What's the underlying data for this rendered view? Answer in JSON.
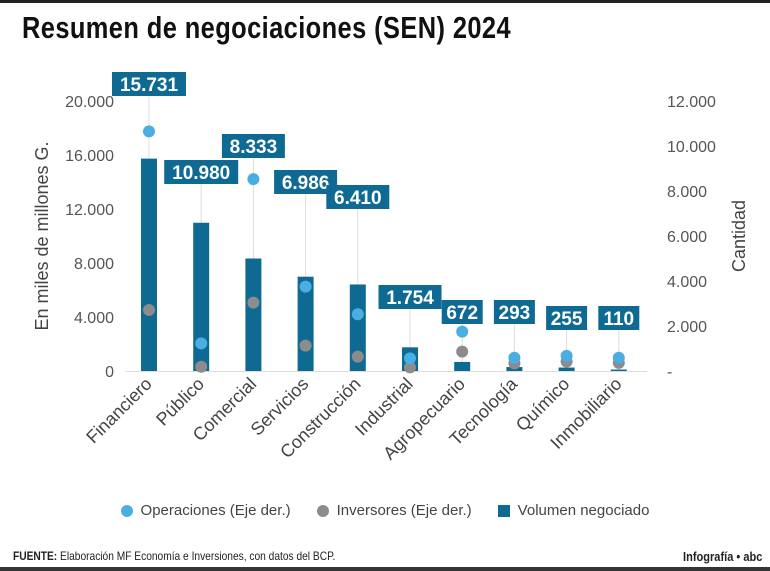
{
  "chart_data": {
    "type": "bar",
    "title": "Resumen de negociaciones (SEN) 2024",
    "categories": [
      "Financiero",
      "Público",
      "Comercial",
      "Servicios",
      "Construcción",
      "Industrial",
      "Agropecuario",
      "Tecnología",
      "Químico",
      "Inmobiliario"
    ],
    "series": [
      {
        "name": "Volumen negociado",
        "axis": "left",
        "type": "bar",
        "color": "#0e6a93",
        "values": [
          15731,
          10980,
          8333,
          6986,
          6410,
          1754,
          672,
          293,
          255,
          110
        ],
        "labels": [
          "15.731",
          "10.980",
          "8.333",
          "6.986",
          "6.410",
          "1.754",
          "672",
          "293",
          "255",
          "110"
        ]
      },
      {
        "name": "Operaciones (Eje der.)",
        "axis": "right",
        "type": "scatter",
        "color": "#4aaee3",
        "values": [
          10650,
          1230,
          8530,
          3750,
          2520,
          560,
          1750,
          590,
          670,
          590
        ]
      },
      {
        "name": "Inversores (Eje der.)",
        "axis": "right",
        "type": "scatter",
        "color": "#8c8c8c",
        "values": [
          2710,
          190,
          3040,
          1130,
          640,
          160,
          860,
          340,
          420,
          360
        ]
      }
    ],
    "ylabel": "En miles de millones G.",
    "y2label": "Cantidad",
    "ylim": [
      0,
      20000
    ],
    "y2lim": [
      0,
      12000
    ],
    "yticks": [
      "0",
      "4.000",
      "8.000",
      "12.000",
      "16.000",
      "20.000"
    ],
    "y2ticks": [
      "-",
      "2.000",
      "4.000",
      "6.000",
      "8.000",
      "10.000",
      "12.000"
    ],
    "grid": false,
    "legend": "bottom"
  },
  "footer": {
    "source_label": "FUENTE:",
    "source_text": " Elaboración MF Economía e Inversiones, con datos del BCP.",
    "credit": "Infografía • abc"
  }
}
